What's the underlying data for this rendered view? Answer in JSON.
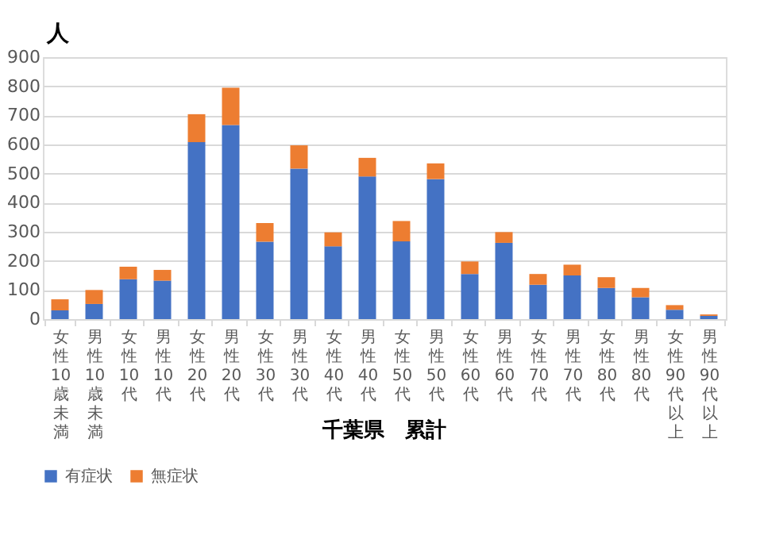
{
  "chart_data": {
    "type": "bar",
    "stacked": true,
    "title": "千葉県　累計",
    "ylabel": "人",
    "categories": [
      "女性 10歳未満",
      "男性 10歳未満",
      "女性 10代",
      "男性 10代",
      "女性 20代",
      "男性 20代",
      "女性 30代",
      "男性 30代",
      "女性 40代",
      "男性 40代",
      "女性 50代",
      "男性 50代",
      "女性 60代",
      "男性 60代",
      "女性 70代",
      "男性 70代",
      "女性 80代",
      "男性 80代",
      "女性 90代以上",
      "男性 90代以上"
    ],
    "series": [
      {
        "name": "有症状",
        "color": "#4472c4",
        "values": [
          30,
          52,
          137,
          132,
          608,
          667,
          266,
          517,
          250,
          490,
          267,
          481,
          155,
          262,
          118,
          150,
          107,
          75,
          32,
          11
        ]
      },
      {
        "name": "無症状",
        "color": "#ed7d31",
        "values": [
          38,
          48,
          43,
          37,
          96,
          128,
          64,
          80,
          48,
          64,
          70,
          54,
          43,
          37,
          37,
          37,
          37,
          32,
          16,
          5
        ]
      }
    ],
    "ylim": [
      0,
      900
    ],
    "yticks": [
      0,
      100,
      200,
      300,
      400,
      500,
      600,
      700,
      800,
      900
    ],
    "grid": "y",
    "legend": "bottom"
  }
}
